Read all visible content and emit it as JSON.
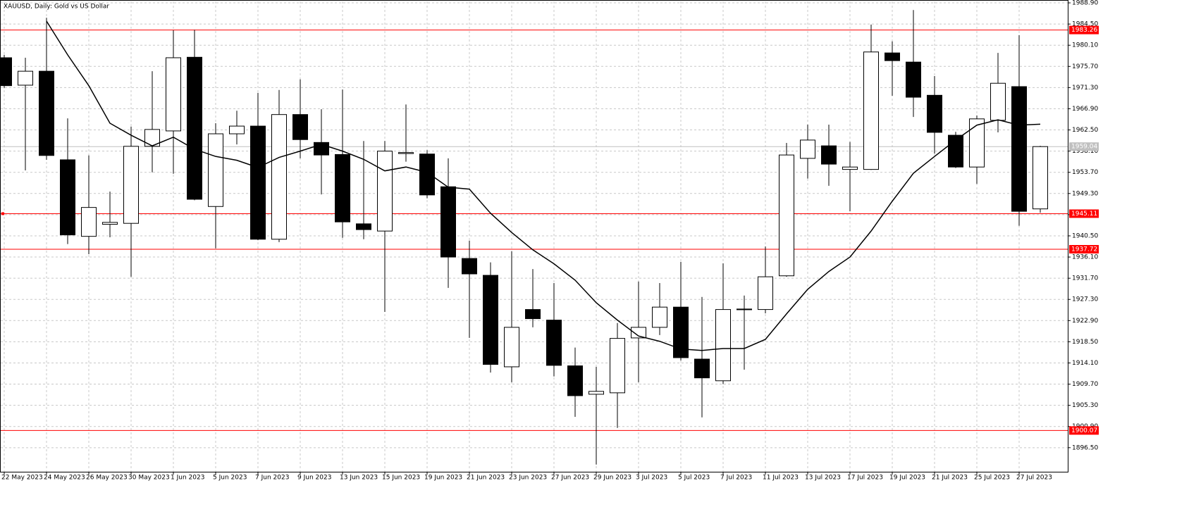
{
  "chart_data": {
    "type": "candlestick",
    "title": "XAUUSD, Daily:  Gold vs US Dollar",
    "categories": [
      "22 May 2023",
      null,
      "24 May 2023",
      null,
      "26 May 2023",
      null,
      "30 May 2023",
      null,
      "1 Jun 2023",
      null,
      "5 Jun 2023",
      null,
      "7 Jun 2023",
      null,
      "9 Jun 2023",
      null,
      "13 Jun 2023",
      null,
      "15 Jun 2023",
      null,
      "19 Jun 2023",
      null,
      "21 Jun 2023",
      null,
      "23 Jun 2023",
      null,
      "27 Jun 2023",
      null,
      "29 Jun 2023",
      null,
      "3 Jul 2023",
      null,
      "5 Jul 2023",
      null,
      "7 Jul 2023",
      null,
      "11 Jul 2023",
      null,
      "13 Jul 2023",
      null,
      "17 Jul 2023",
      null,
      "19 Jul 2023",
      null,
      "21 Jul 2023",
      null,
      "25 Jul 2023",
      null,
      "27 Jul 2023",
      null
    ],
    "open": [
      1977.5,
      1971.8,
      1974.7,
      1956.3,
      1940.4,
      1942.9,
      1943.1,
      1959.1,
      1962.3,
      1977.6,
      1946.6,
      1961.7,
      1963.3,
      1939.8,
      1965.7,
      1959.9,
      1957.4,
      1943.0,
      1941.5,
      1957.6,
      1957.5,
      1950.7,
      1935.8,
      1932.3,
      1913.3,
      1925.2,
      1923.0,
      1913.5,
      1907.6,
      1907.9,
      1919.3,
      1921.5,
      1925.7,
      1914.9,
      1910.4,
      1925.2,
      1925.2,
      1932.2,
      1956.6,
      1959.2,
      1954.3,
      1954.3,
      1978.5,
      1976.6,
      1969.7,
      1961.4,
      1954.8,
      1964.5,
      1971.5,
      1946.1
    ],
    "high": [
      1978.1,
      1977.5,
      1985.8,
      1964.9,
      1957.2,
      1949.7,
      1963.2,
      1974.7,
      1983.2,
      1983.3,
      1963.9,
      1966.5,
      1970.2,
      1970.8,
      1973.0,
      1966.8,
      1970.9,
      1960.2,
      1960.2,
      1967.8,
      1958.3,
      1956.6,
      1939.5,
      1935.0,
      1937.3,
      1933.6,
      1930.7,
      1917.3,
      1913.3,
      1922.4,
      1931.0,
      1930.7,
      1935.1,
      1927.8,
      1934.8,
      1928.1,
      1938.3,
      1959.8,
      1963.6,
      1963.6,
      1960.0,
      1984.4,
      1980.9,
      1987.4,
      1973.7,
      1962.1,
      1965.5,
      1978.5,
      1982.2,
      1959.2
    ],
    "low": [
      1971.2,
      1954.1,
      1956.3,
      1938.8,
      1936.7,
      1940.2,
      1932.0,
      1953.7,
      1953.4,
      1947.9,
      1937.9,
      1959.5,
      1939.6,
      1939.2,
      1956.6,
      1949.1,
      1940.1,
      1939.8,
      1924.7,
      1955.9,
      1948.3,
      1929.7,
      1919.3,
      1912.1,
      1910.1,
      1921.5,
      1911.3,
      1902.9,
      1893.0,
      1900.6,
      1910.1,
      1919.9,
      1914.6,
      1902.8,
      1909.7,
      1912.7,
      1924.4,
      1932.0,
      1952.4,
      1950.9,
      1945.6,
      1954.2,
      1969.6,
      1965.2,
      1957.6,
      1954.6,
      1951.3,
      1962.0,
      1942.6,
      1945.3
    ],
    "close": [
      1971.7,
      1974.7,
      1957.2,
      1940.7,
      1946.4,
      1943.3,
      1959.1,
      1962.6,
      1977.5,
      1948.1,
      1961.7,
      1963.3,
      1939.8,
      1965.7,
      1960.5,
      1957.3,
      1943.4,
      1941.8,
      1958.1,
      1957.8,
      1949.0,
      1936.1,
      1932.6,
      1913.8,
      1921.5,
      1923.3,
      1913.6,
      1907.3,
      1908.2,
      1919.2,
      1921.5,
      1925.7,
      1915.2,
      1911.0,
      1925.2,
      1925.3,
      1932.0,
      1957.3,
      1960.4,
      1955.4,
      1954.8,
      1978.7,
      1976.9,
      1969.3,
      1962.0,
      1954.8,
      1964.8,
      1972.2,
      1945.6,
      1959.04
    ],
    "ma": {
      "color": "#000000",
      "values": [
        null,
        null,
        1985.1,
        1978.1,
        1971.7,
        1963.9,
        1961.4,
        1959.2,
        1961.0,
        1958.5,
        1957.0,
        1956.2,
        1954.7,
        1956.8,
        1958.1,
        1959.5,
        1958.1,
        1956.4,
        1954.0,
        1954.8,
        1953.7,
        1950.6,
        1950.2,
        1945.2,
        1941.2,
        1937.6,
        1934.7,
        1931.3,
        1926.6,
        1923.0,
        1919.7,
        1918.6,
        1917.0,
        1916.7,
        1917.1,
        1917.1,
        1919.0,
        1924.3,
        1929.4,
        1933.1,
        1936.1,
        1941.5,
        1947.7,
        1953.5,
        1957.0,
        1960.4,
        1963.5,
        1964.6,
        1963.5,
        1963.7
      ]
    },
    "levels": [
      {
        "value": 1983.26,
        "color": "#ff0000"
      },
      {
        "value": 1945.11,
        "color": "#ff0000"
      },
      {
        "value": 1937.72,
        "color": "#ff0000"
      },
      {
        "value": 1900.07,
        "color": "#ff0000"
      }
    ],
    "price_line": {
      "value": 1959.04,
      "color": "#c0c0c0"
    },
    "ylim": [
      1891.5,
      1989.2
    ],
    "yticks": [
      {
        "value": 1988.9,
        "label": "1988.90"
      },
      {
        "value": 1984.5,
        "label": "1984.50"
      },
      {
        "value": 1980.1,
        "label": "1980.10"
      },
      {
        "value": 1975.7,
        "label": "1975.70"
      },
      {
        "value": 1971.3,
        "label": "1971.30"
      },
      {
        "value": 1966.9,
        "label": "1966.90"
      },
      {
        "value": 1962.5,
        "label": "1962.50"
      },
      {
        "value": 1958.1,
        "label": "1958.10"
      },
      {
        "value": 1953.7,
        "label": "1953.70"
      },
      {
        "value": 1949.3,
        "label": "1949.30"
      },
      {
        "value": 1944.9,
        "label": "1944.90"
      },
      {
        "value": 1940.5,
        "label": "1940.50"
      },
      {
        "value": 1936.1,
        "label": "1936.10"
      },
      {
        "value": 1931.7,
        "label": "1931.70"
      },
      {
        "value": 1927.3,
        "label": "1927.30"
      },
      {
        "value": 1922.9,
        "label": "1922.90"
      },
      {
        "value": 1918.5,
        "label": "1918.50"
      },
      {
        "value": 1914.1,
        "label": "1914.10"
      },
      {
        "value": 1909.7,
        "label": "1909.70"
      },
      {
        "value": 1905.3,
        "label": "1905.30"
      },
      {
        "value": 1900.9,
        "label": "1900.90"
      },
      {
        "value": 1896.5,
        "label": "1896.50"
      }
    ],
    "grid": true
  }
}
